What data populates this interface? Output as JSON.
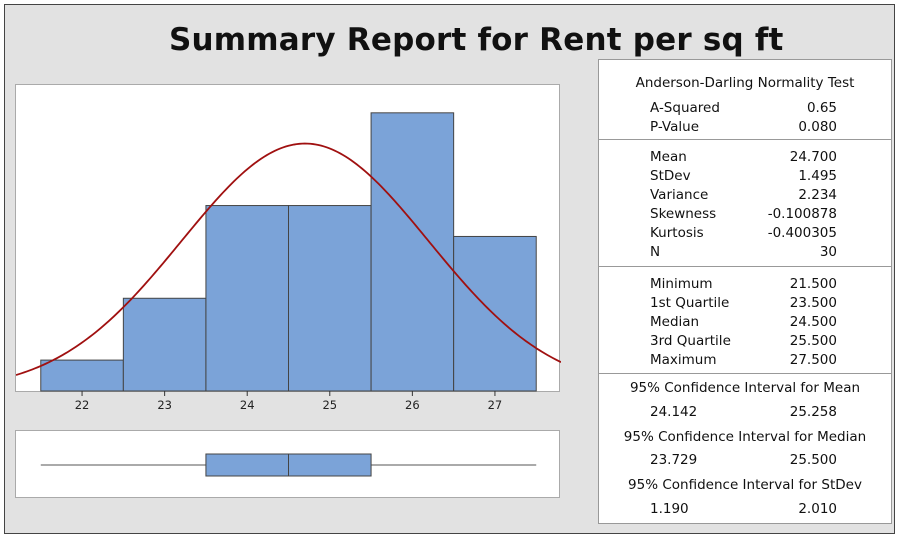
{
  "title": "Summary Report for Rent per sq ft",
  "colors": {
    "bar_fill": "#7ba3d8",
    "bar_edge": "#444444",
    "curve": "#a01010",
    "box_fill": "#7ba3d8"
  },
  "chart_data": [
    {
      "type": "bar",
      "subtype": "histogram",
      "bin_centers": [
        22,
        23,
        24,
        25,
        26,
        27
      ],
      "bin_edges": [
        21.5,
        22.5,
        23.5,
        24.5,
        25.5,
        26.5,
        27.5
      ],
      "values": [
        1,
        3,
        6,
        6,
        9,
        5
      ],
      "tick_labels": [
        "22",
        "23",
        "24",
        "25",
        "26",
        "27"
      ],
      "xlim": [
        21.2,
        27.8
      ],
      "ylim": [
        0,
        9.9
      ],
      "normal_fit": {
        "mean": 24.7,
        "stdev": 1.495,
        "n": 30,
        "bin_width": 1
      }
    },
    {
      "type": "box",
      "min": 21.5,
      "q1": 23.5,
      "median": 24.5,
      "q3": 25.5,
      "max": 27.5,
      "xlim": [
        21.2,
        27.8
      ]
    }
  ],
  "normality": {
    "title": "Anderson-Darling Normality Test",
    "rows": [
      {
        "label": "A-Squared",
        "value": "0.65"
      },
      {
        "label": "P-Value",
        "value": "0.080"
      }
    ]
  },
  "moments": {
    "rows": [
      {
        "label": "Mean",
        "value": "24.700"
      },
      {
        "label": "StDev",
        "value": "1.495"
      },
      {
        "label": "Variance",
        "value": "2.234"
      },
      {
        "label": "Skewness",
        "value": "-0.100878"
      },
      {
        "label": "Kurtosis",
        "value": "-0.400305"
      },
      {
        "label": "N",
        "value": "30"
      }
    ]
  },
  "quantiles": {
    "rows": [
      {
        "label": "Minimum",
        "value": "21.500"
      },
      {
        "label": "1st Quartile",
        "value": "23.500"
      },
      {
        "label": "Median",
        "value": "24.500"
      },
      {
        "label": "3rd Quartile",
        "value": "25.500"
      },
      {
        "label": "Maximum",
        "value": "27.500"
      }
    ]
  },
  "intervals": [
    {
      "title": "95% Confidence Interval for Mean",
      "low": "24.142",
      "high": "25.258"
    },
    {
      "title": "95% Confidence Interval for Median",
      "low": "23.729",
      "high": "25.500"
    },
    {
      "title": "95% Confidence Interval for StDev",
      "low": "1.190",
      "high": "2.010"
    }
  ]
}
